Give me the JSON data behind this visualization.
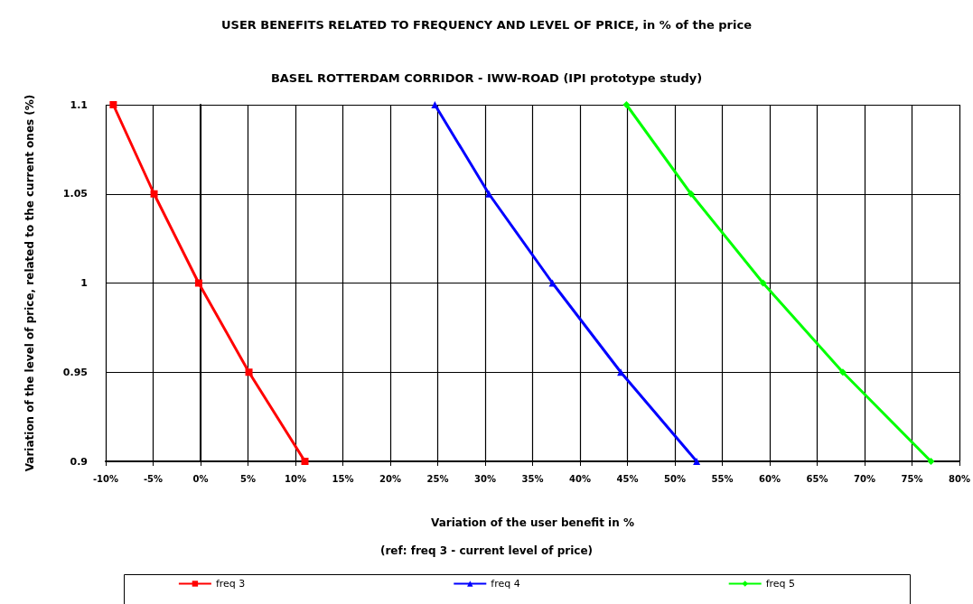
{
  "chart_data": {
    "type": "line",
    "title": "USER BENEFITS RELATED TO FREQUENCY AND LEVEL OF PRICE, in % of the price",
    "subtitle": "BASEL ROTTERDAM CORRIDOR - IWW-ROAD (IPI prototype study)",
    "xlabel": "Variation of the user benefit in %",
    "ylabel": "Variation of the level of price, related to the current ones (%)",
    "annotations": [
      "(ref: freq 3 - current level of price)"
    ],
    "series": [
      {
        "name": "freq 3",
        "color": "#ff0000",
        "marker": "square",
        "x": [
          -9.2,
          -4.9,
          -0.2,
          5.1,
          11.0
        ],
        "values": [
          1.1,
          1.05,
          1.0,
          0.95,
          0.9
        ]
      },
      {
        "name": "freq 4",
        "color": "#0000ff",
        "marker": "triangle",
        "x": [
          24.7,
          30.4,
          37.1,
          44.3,
          52.3
        ],
        "values": [
          1.1,
          1.05,
          1.0,
          0.95,
          0.9
        ]
      },
      {
        "name": "freq 5",
        "color": "#00ff00",
        "marker": "diamond",
        "x": [
          44.9,
          51.7,
          59.3,
          67.7,
          77.0
        ],
        "values": [
          1.1,
          1.05,
          1.0,
          0.95,
          0.9
        ]
      }
    ],
    "xlim": [
      -10,
      80
    ],
    "xticks": [
      {
        "value": -10,
        "label": "-10%"
      },
      {
        "value": -5,
        "label": "-5%"
      },
      {
        "value": 0,
        "label": "0%"
      },
      {
        "value": 5,
        "label": "5%"
      },
      {
        "value": 10,
        "label": "10%"
      },
      {
        "value": 15,
        "label": "15%"
      },
      {
        "value": 20,
        "label": "20%"
      },
      {
        "value": 25,
        "label": "25%"
      },
      {
        "value": 30,
        "label": "30%"
      },
      {
        "value": 35,
        "label": "35%"
      },
      {
        "value": 40,
        "label": "40%"
      },
      {
        "value": 45,
        "label": "45%"
      },
      {
        "value": 50,
        "label": "50%"
      },
      {
        "value": 55,
        "label": "55%"
      },
      {
        "value": 60,
        "label": "60%"
      },
      {
        "value": 65,
        "label": "65%"
      },
      {
        "value": 70,
        "label": "70%"
      },
      {
        "value": 75,
        "label": "75%"
      },
      {
        "value": 80,
        "label": "80%"
      }
    ],
    "ylim": [
      0.9,
      1.1
    ],
    "yticks": [
      0.9,
      0.95,
      1,
      1.05,
      1.1
    ],
    "grid": true,
    "legend": "bottom",
    "line_style": "solid"
  }
}
